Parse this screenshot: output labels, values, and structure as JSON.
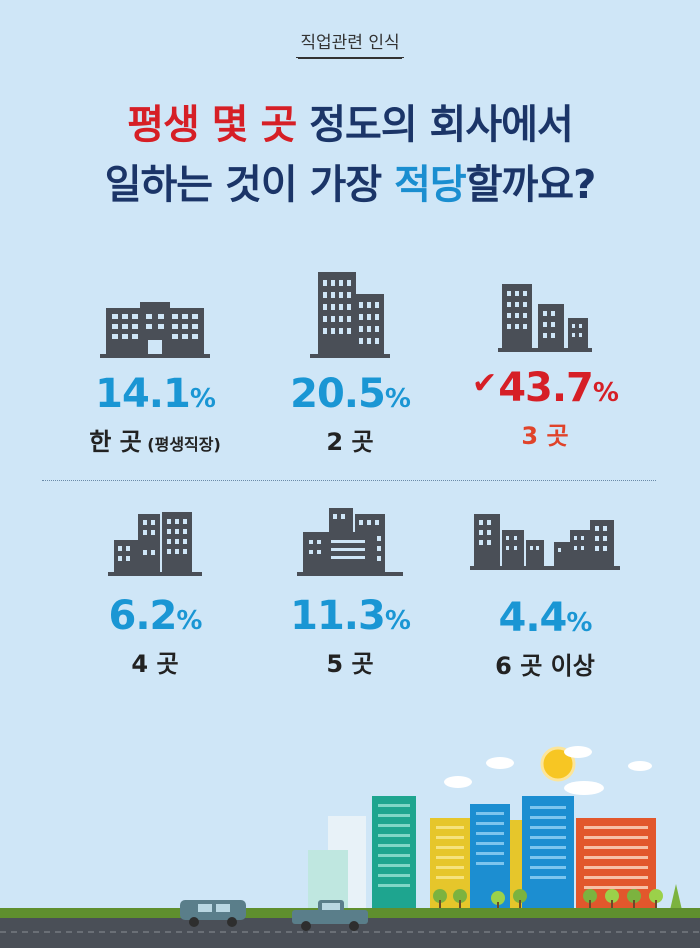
{
  "header": {
    "tag": "직업관련 인식",
    "title_line1": {
      "red": "평생 몇 곳",
      "rest": " 정도의 회사에서"
    },
    "title_line2": {
      "start": "일하는 것이 가장 ",
      "blue": "적당",
      "end": "할까요?"
    }
  },
  "unit": "%",
  "items": [
    {
      "value": "14.1",
      "label": "한 곳",
      "sub": " (평생직장)",
      "highlight": false
    },
    {
      "value": "20.5",
      "label": "2 곳",
      "sub": "",
      "highlight": false
    },
    {
      "value": "43.7",
      "label": "3 곳",
      "sub": "",
      "highlight": true
    },
    {
      "value": "6.2",
      "label": "4 곳",
      "sub": "",
      "highlight": false
    },
    {
      "value": "11.3",
      "label": "5 곳",
      "sub": "",
      "highlight": false
    },
    {
      "value": "4.4",
      "label": "6 곳 이상",
      "sub": "",
      "highlight": false
    }
  ],
  "icons": [
    "building-1-icon",
    "buildings-2-icon",
    "buildings-3-icon",
    "buildings-4-icon",
    "buildings-5-icon",
    "buildings-6-icon"
  ],
  "colors": {
    "red": "#d61f26",
    "blue": "#1a96d4",
    "navy": "#1b3568",
    "building": "#4a4f57",
    "sky": "#cfe6f7"
  }
}
